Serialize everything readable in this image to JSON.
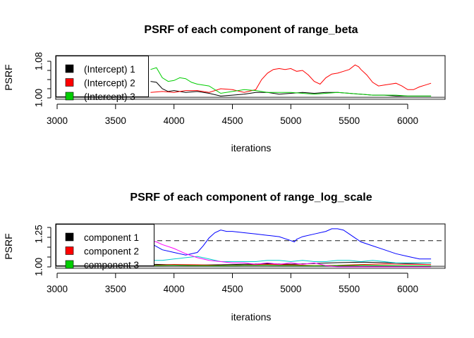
{
  "chart_data": [
    {
      "type": "line",
      "title": "PSRF of each component of range_beta",
      "xlabel": "iterations",
      "ylabel": "PSRF",
      "xlim": [
        3000,
        6300
      ],
      "ylim": [
        1.0,
        1.08
      ],
      "x_ticks": [
        "3000",
        "3500",
        "4000",
        "4500",
        "5000",
        "5500",
        "6000"
      ],
      "y_ticks": [
        "1.00",
        "1.08"
      ],
      "reference_line": null,
      "legend": {
        "position": "top-left",
        "entries": [
          "(Intercept) 1",
          "(Intercept) 2",
          "(Intercept) 3"
        ]
      },
      "series": [
        {
          "name": "(Intercept) 1",
          "color": "#000000",
          "x": [
            3800,
            3850,
            3900,
            3950,
            4000,
            4100,
            4200,
            4300,
            4400,
            4500,
            4600,
            4700,
            4800,
            4900,
            5000,
            5100,
            5200,
            5300,
            5400,
            5500,
            5600,
            5700,
            5800,
            5900,
            6000,
            6100,
            6200
          ],
          "y": [
            1.036,
            1.034,
            1.02,
            1.014,
            1.016,
            1.012,
            1.014,
            1.01,
            1.004,
            1.006,
            1.008,
            1.012,
            1.012,
            1.008,
            1.01,
            1.012,
            1.01,
            1.012,
            1.012,
            1.01,
            1.008,
            1.006,
            1.006,
            1.004,
            1.004,
            1.004,
            1.004
          ]
        },
        {
          "name": "(Intercept) 2",
          "color": "#ff0000",
          "x": [
            3800,
            3900,
            4000,
            4100,
            4200,
            4300,
            4400,
            4500,
            4600,
            4700,
            4750,
            4800,
            4850,
            4900,
            4950,
            5000,
            5050,
            5100,
            5150,
            5200,
            5250,
            5300,
            5350,
            5400,
            5450,
            5500,
            5550,
            5580,
            5600,
            5650,
            5700,
            5750,
            5800,
            5850,
            5900,
            5950,
            6000,
            6050,
            6100,
            6150,
            6200
          ],
          "y": [
            1.012,
            1.014,
            1.012,
            1.016,
            1.016,
            1.012,
            1.02,
            1.018,
            1.012,
            1.018,
            1.04,
            1.054,
            1.062,
            1.064,
            1.062,
            1.064,
            1.058,
            1.06,
            1.05,
            1.036,
            1.03,
            1.044,
            1.052,
            1.054,
            1.058,
            1.062,
            1.072,
            1.068,
            1.062,
            1.05,
            1.034,
            1.026,
            1.028,
            1.03,
            1.032,
            1.026,
            1.018,
            1.018,
            1.024,
            1.028,
            1.032
          ]
        },
        {
          "name": "(Intercept) 3",
          "color": "#00cd00",
          "x": [
            3800,
            3850,
            3900,
            3950,
            4000,
            4050,
            4100,
            4150,
            4200,
            4300,
            4400,
            4500,
            4600,
            4700,
            4800,
            4900,
            5000,
            5100,
            5200,
            5300,
            5400,
            5500,
            5600,
            5700,
            5800,
            5900,
            6000,
            6100,
            6200
          ],
          "y": [
            1.062,
            1.066,
            1.044,
            1.036,
            1.038,
            1.044,
            1.042,
            1.034,
            1.03,
            1.026,
            1.01,
            1.014,
            1.018,
            1.016,
            1.012,
            1.012,
            1.012,
            1.01,
            1.008,
            1.01,
            1.012,
            1.01,
            1.008,
            1.006,
            1.006,
            1.006,
            1.004,
            1.004,
            1.004
          ]
        }
      ]
    },
    {
      "type": "line",
      "title": "PSRF of each component of range_log_scale",
      "xlabel": "iterations",
      "ylabel": "PSRF",
      "xlim": [
        3000,
        6300
      ],
      "ylim": [
        1.0,
        1.3
      ],
      "x_ticks": [
        "3000",
        "3500",
        "4000",
        "4500",
        "5000",
        "5500",
        "6000"
      ],
      "y_ticks": [
        "1.00",
        "1.25"
      ],
      "reference_line": {
        "y": 1.2,
        "style": "dashed",
        "color": "#555555"
      },
      "legend": {
        "position": "top-left",
        "entries": [
          "component 1",
          "component 2",
          "component 3"
        ]
      },
      "series": [
        {
          "name": "component 1",
          "color": "#000000",
          "x": [
            3800,
            4000,
            4200,
            4400,
            4600,
            4800,
            5000,
            5200,
            5400,
            5600,
            5800,
            6000,
            6200
          ],
          "y": [
            1.02,
            1.016,
            1.014,
            1.016,
            1.02,
            1.024,
            1.02,
            1.026,
            1.032,
            1.036,
            1.032,
            1.026,
            1.03
          ]
        },
        {
          "name": "component 2",
          "color": "#ff0000",
          "x": [
            3800,
            4000,
            4200,
            4400,
            4600,
            4800,
            5000,
            5200,
            5400,
            5600,
            5800,
            6000,
            6200
          ],
          "y": [
            1.012,
            1.018,
            1.016,
            1.01,
            1.014,
            1.018,
            1.016,
            1.01,
            1.012,
            1.018,
            1.022,
            1.02,
            1.018
          ]
        },
        {
          "name": "component 3",
          "color": "#00cd00",
          "x": [
            3800,
            4000,
            4200,
            4400,
            4600,
            4800,
            5000,
            5200,
            5400,
            5600,
            5800,
            6000,
            6200
          ],
          "y": [
            1.01,
            1.012,
            1.01,
            1.008,
            1.012,
            1.012,
            1.01,
            1.008,
            1.01,
            1.012,
            1.01,
            1.008,
            1.008
          ]
        },
        {
          "color": "#0000ff",
          "x": [
            3800,
            3900,
            4000,
            4100,
            4200,
            4250,
            4300,
            4350,
            4400,
            4450,
            4500,
            4600,
            4700,
            4800,
            4900,
            5000,
            5030,
            5050,
            5100,
            5200,
            5300,
            5350,
            5400,
            5450,
            5500,
            5550,
            5600,
            5700,
            5800,
            5900,
            6000,
            6100,
            6200
          ],
          "y": [
            1.18,
            1.13,
            1.11,
            1.09,
            1.11,
            1.16,
            1.22,
            1.26,
            1.28,
            1.27,
            1.27,
            1.26,
            1.25,
            1.24,
            1.23,
            1.2,
            1.19,
            1.21,
            1.23,
            1.25,
            1.27,
            1.29,
            1.29,
            1.28,
            1.25,
            1.22,
            1.19,
            1.16,
            1.13,
            1.1,
            1.08,
            1.06,
            1.06
          ]
        },
        {
          "color": "#00cccc",
          "x": [
            3800,
            3900,
            4000,
            4100,
            4200,
            4300,
            4400,
            4500,
            4600,
            4700,
            4800,
            4900,
            5000,
            5100,
            5200,
            5300,
            5400,
            5500,
            5600,
            5700,
            5800,
            5900,
            6000,
            6100,
            6200
          ],
          "y": [
            1.05,
            1.05,
            1.06,
            1.07,
            1.08,
            1.06,
            1.04,
            1.04,
            1.04,
            1.04,
            1.05,
            1.05,
            1.04,
            1.05,
            1.04,
            1.04,
            1.05,
            1.05,
            1.04,
            1.05,
            1.04,
            1.03,
            1.03,
            1.03,
            1.03
          ]
        },
        {
          "color": "#ff00ff",
          "x": [
            3800,
            3850,
            3900,
            4000,
            4100,
            4200,
            4300,
            4400,
            4500,
            4600,
            4700,
            4800,
            4900,
            5000,
            5100,
            5200,
            5300,
            5400,
            5500,
            5600,
            5700,
            5800,
            5900,
            6000,
            6100,
            6200
          ],
          "y": [
            1.2,
            1.19,
            1.17,
            1.14,
            1.1,
            1.07,
            1.05,
            1.04,
            1.03,
            1.03,
            1.02,
            1.03,
            1.02,
            1.03,
            1.02,
            1.03,
            1.01,
            1.0,
            1.0,
            1.0,
            1.0,
            1.0,
            1.0,
            1.0,
            1.0,
            1.0
          ]
        }
      ]
    }
  ]
}
